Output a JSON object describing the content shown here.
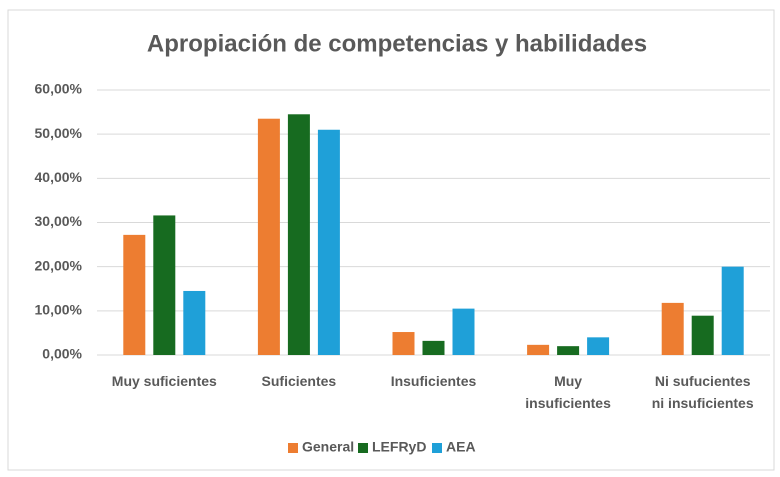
{
  "chart_data": {
    "type": "bar",
    "title": "Apropiación de competencias y habilidades",
    "categories": [
      "Muy suficientes",
      "Suficientes",
      "Insuficientes",
      "Muy\ninsuficientes",
      "Ni sufucientes\nni insuficientes"
    ],
    "series": [
      {
        "name": "General",
        "color": "#ed7d31",
        "values": [
          27.2,
          53.5,
          5.2,
          2.3,
          11.8
        ]
      },
      {
        "name": "LEFRyD",
        "color": "#176b20",
        "values": [
          31.6,
          54.5,
          3.2,
          2.0,
          8.9
        ]
      },
      {
        "name": "AEA",
        "color": "#1fa0d8",
        "values": [
          14.5,
          51.0,
          10.5,
          4.0,
          20.0
        ]
      }
    ],
    "ylim": [
      0,
      60
    ],
    "yticks": [
      {
        "value": 0,
        "label": "0,00%"
      },
      {
        "value": 10,
        "label": "10,00%"
      },
      {
        "value": 20,
        "label": "20,00%"
      },
      {
        "value": 30,
        "label": "30,00%"
      },
      {
        "value": 40,
        "label": "40,00%"
      },
      {
        "value": 50,
        "label": "50,00%"
      },
      {
        "value": 60,
        "label": "60,00%"
      }
    ],
    "grid": true,
    "legend": "bottom"
  }
}
